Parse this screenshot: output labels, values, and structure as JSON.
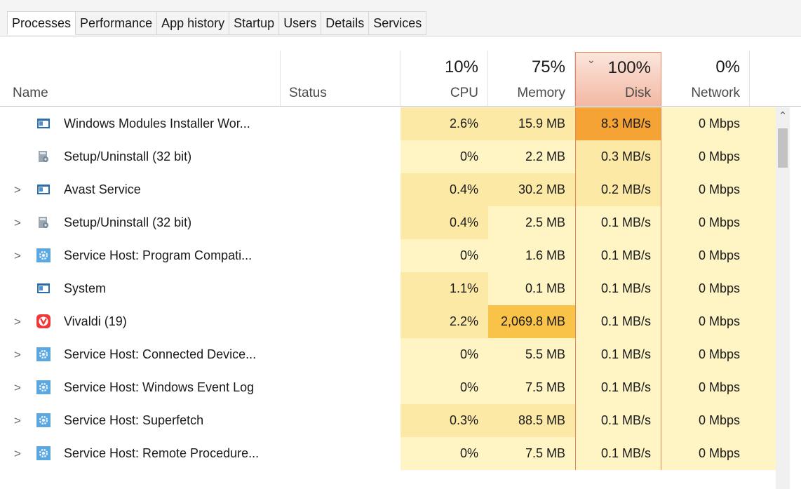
{
  "tabs": [
    "Processes",
    "Performance",
    "App history",
    "Startup",
    "Users",
    "Details",
    "Services"
  ],
  "columns": {
    "name": "Name",
    "status": "Status",
    "cpu": {
      "pct": "10%",
      "label": "CPU"
    },
    "memory": {
      "pct": "75%",
      "label": "Memory"
    },
    "disk": {
      "pct": "100%",
      "label": "Disk"
    },
    "network": {
      "pct": "0%",
      "label": "Network"
    }
  },
  "rows": [
    {
      "name": "Windows Modules Installer Wor...",
      "icon": "window-icon",
      "expandable": false,
      "cpu": "2.6%",
      "memory": "15.9 MB",
      "disk": "8.3 MB/s",
      "network": "0 Mbps"
    },
    {
      "name": "Setup/Uninstall (32 bit)",
      "icon": "setup-icon",
      "expandable": false,
      "cpu": "0%",
      "memory": "2.2 MB",
      "disk": "0.3 MB/s",
      "network": "0 Mbps"
    },
    {
      "name": "Avast Service",
      "icon": "window-icon",
      "expandable": true,
      "cpu": "0.4%",
      "memory": "30.2 MB",
      "disk": "0.2 MB/s",
      "network": "0 Mbps"
    },
    {
      "name": "Setup/Uninstall (32 bit)",
      "icon": "setup-icon",
      "expandable": true,
      "cpu": "0.4%",
      "memory": "2.5 MB",
      "disk": "0.1 MB/s",
      "network": "0 Mbps"
    },
    {
      "name": "Service Host: Program Compati...",
      "icon": "gear-icon",
      "expandable": true,
      "cpu": "0%",
      "memory": "1.6 MB",
      "disk": "0.1 MB/s",
      "network": "0 Mbps"
    },
    {
      "name": "System",
      "icon": "window-icon",
      "expandable": false,
      "cpu": "1.1%",
      "memory": "0.1 MB",
      "disk": "0.1 MB/s",
      "network": "0 Mbps"
    },
    {
      "name": "Vivaldi (19)",
      "icon": "vivaldi-icon",
      "expandable": true,
      "cpu": "2.2%",
      "memory": "2,069.8 MB",
      "disk": "0.1 MB/s",
      "network": "0 Mbps"
    },
    {
      "name": "Service Host: Connected Device...",
      "icon": "gear-icon",
      "expandable": true,
      "cpu": "0%",
      "memory": "5.5 MB",
      "disk": "0.1 MB/s",
      "network": "0 Mbps"
    },
    {
      "name": "Service Host: Windows Event Log",
      "icon": "gear-icon",
      "expandable": true,
      "cpu": "0%",
      "memory": "7.5 MB",
      "disk": "0.1 MB/s",
      "network": "0 Mbps"
    },
    {
      "name": "Service Host: Superfetch",
      "icon": "gear-icon",
      "expandable": true,
      "cpu": "0.3%",
      "memory": "88.5 MB",
      "disk": "0.1 MB/s",
      "network": "0 Mbps"
    },
    {
      "name": "Service Host: Remote Procedure...",
      "icon": "gear-icon",
      "expandable": true,
      "cpu": "0%",
      "memory": "7.5 MB",
      "disk": "0.1 MB/s",
      "network": "0 Mbps"
    }
  ],
  "colors": {
    "heat_light": "#fff4c4",
    "heat_mid": "#fde9a6",
    "heat_high": "#f9c34a",
    "heat_max": "#f4a334",
    "sorted_border": "#e8845e"
  }
}
